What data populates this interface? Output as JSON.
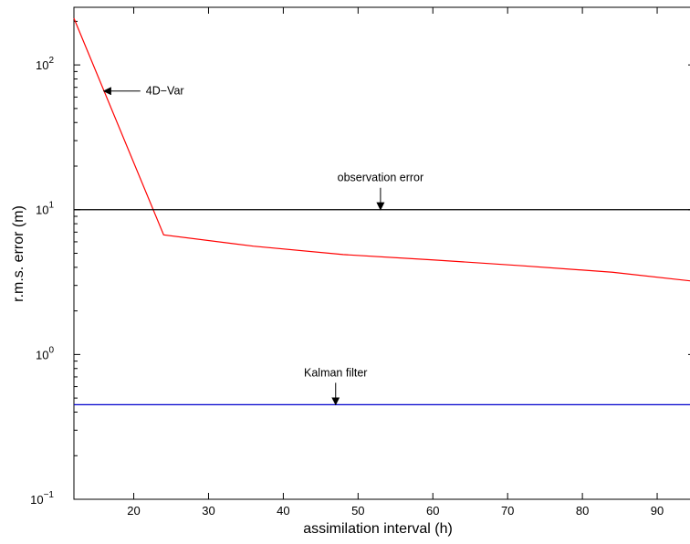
{
  "chart_data": {
    "type": "line",
    "xlabel": "assimilation interval (h)",
    "ylabel": "r.m.s. error (m)",
    "xlim": [
      12,
      95
    ],
    "ylim": [
      0.1,
      250
    ],
    "yscale": "log",
    "grid": false,
    "xticks": [
      20,
      30,
      40,
      50,
      60,
      70,
      80,
      90
    ],
    "yticks": [
      {
        "value": 0.1,
        "base": "10",
        "exp": "−1"
      },
      {
        "value": 1,
        "base": "10",
        "exp": "0"
      },
      {
        "value": 10,
        "base": "10",
        "exp": "1"
      },
      {
        "value": 100,
        "base": "10",
        "exp": "2"
      }
    ],
    "series": [
      {
        "color": "#ff0000",
        "x": [
          12,
          24,
          36,
          48,
          60,
          72,
          84,
          95
        ],
        "y": [
          210,
          6.7,
          5.6,
          4.9,
          4.5,
          4.1,
          3.7,
          3.2
        ]
      },
      {
        "color": "#000000",
        "x": [
          12,
          95
        ],
        "y": [
          10,
          10
        ]
      },
      {
        "color": "#0000cc",
        "x": [
          12,
          95
        ],
        "y": [
          0.45,
          0.45
        ]
      }
    ],
    "annotations": [
      {
        "text": "4D−Var",
        "point": [
          16,
          66
        ],
        "arrow": "left"
      },
      {
        "text": "observation error",
        "point": [
          53,
          10
        ],
        "arrow": "down"
      },
      {
        "text": "Kalman filter",
        "point": [
          47,
          0.45
        ],
        "arrow": "down"
      }
    ]
  }
}
